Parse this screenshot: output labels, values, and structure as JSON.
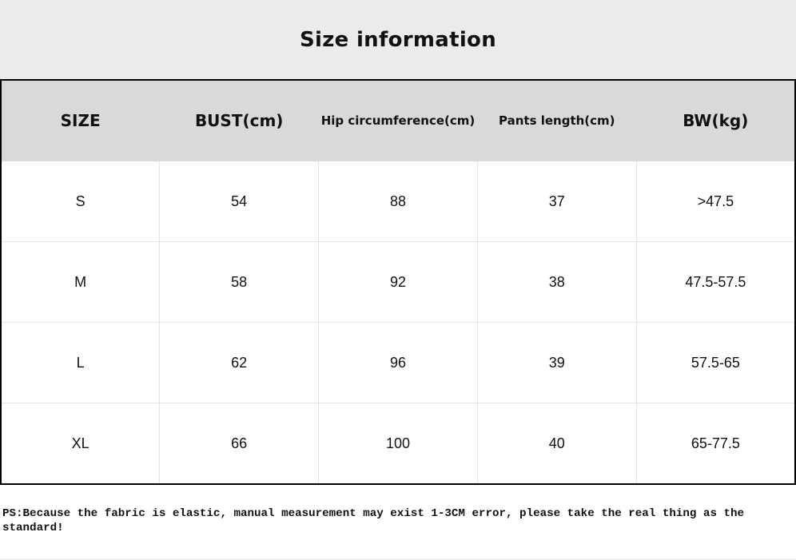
{
  "title": "Size information",
  "table": {
    "headers": [
      "SIZE",
      "BUST(cm)",
      "Hip circumference(cm)",
      "Pants length(cm)",
      "BW(kg)"
    ],
    "rows": [
      [
        "S",
        "54",
        "88",
        "37",
        ">47.5"
      ],
      [
        "M",
        "58",
        "92",
        "38",
        "47.5-57.5"
      ],
      [
        "L",
        "62",
        "96",
        "39",
        "57.5-65"
      ],
      [
        "XL",
        "66",
        "100",
        "40",
        "65-77.5"
      ]
    ]
  },
  "note": "PS:Because the fabric is elastic, manual measurement may exist 1-3CM error, please take the real thing as the standard!",
  "colors": {
    "title_band": "#ebebeb",
    "header_row": "#d9d9d9",
    "table_border": "#000000"
  }
}
